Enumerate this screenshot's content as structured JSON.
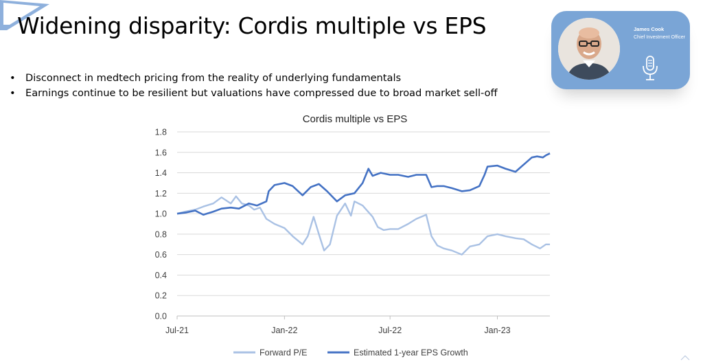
{
  "slide": {
    "title": "Widening disparity: Cordis multiple vs EPS",
    "bullets": [
      "Disconnect in medtech pricing from the reality of underlying fundamentals",
      "Earnings continue to be resilient but valuations have compressed due to broad market sell-off"
    ],
    "accent_color": "#7aa5d6"
  },
  "presenter": {
    "name": "James Cook",
    "role": "Chief Investment Officer",
    "icon": "microphone-icon"
  },
  "chart_data": {
    "type": "line",
    "title": "Cordis multiple vs EPS",
    "xlabel": "",
    "ylabel": "",
    "x_ticks": [
      "Jul-21",
      "Jan-22",
      "Jul-22",
      "Jan-23"
    ],
    "xlim": [
      "2021-07-01",
      "2023-04-01"
    ],
    "ylim": [
      0,
      1.8
    ],
    "y_ticks": [
      0.0,
      0.2,
      0.4,
      0.6,
      0.8,
      1.0,
      1.2,
      1.4,
      1.6,
      1.8
    ],
    "grid": true,
    "legend_position": "bottom",
    "series": [
      {
        "name": "Forward P/E",
        "color": "#a9c1e4",
        "points": [
          [
            "2021-07-01",
            1.0
          ],
          [
            "2021-07-15",
            1.02
          ],
          [
            "2021-08-01",
            1.04
          ],
          [
            "2021-08-15",
            1.07
          ],
          [
            "2021-09-01",
            1.1
          ],
          [
            "2021-09-15",
            1.16
          ],
          [
            "2021-10-01",
            1.1
          ],
          [
            "2021-10-10",
            1.17
          ],
          [
            "2021-10-20",
            1.1
          ],
          [
            "2021-11-01",
            1.08
          ],
          [
            "2021-11-10",
            1.04
          ],
          [
            "2021-11-20",
            1.06
          ],
          [
            "2021-12-01",
            0.95
          ],
          [
            "2021-12-15",
            0.9
          ],
          [
            "2022-01-01",
            0.86
          ],
          [
            "2022-01-15",
            0.78
          ],
          [
            "2022-02-01",
            0.7
          ],
          [
            "2022-02-10",
            0.78
          ],
          [
            "2022-02-20",
            0.97
          ],
          [
            "2022-03-01",
            0.8
          ],
          [
            "2022-03-10",
            0.64
          ],
          [
            "2022-03-20",
            0.7
          ],
          [
            "2022-04-01",
            0.98
          ],
          [
            "2022-04-15",
            1.1
          ],
          [
            "2022-04-25",
            0.98
          ],
          [
            "2022-05-01",
            1.12
          ],
          [
            "2022-05-15",
            1.08
          ],
          [
            "2022-06-01",
            0.97
          ],
          [
            "2022-06-10",
            0.87
          ],
          [
            "2022-06-20",
            0.84
          ],
          [
            "2022-07-01",
            0.85
          ],
          [
            "2022-07-15",
            0.85
          ],
          [
            "2022-08-01",
            0.9
          ],
          [
            "2022-08-15",
            0.95
          ],
          [
            "2022-09-01",
            0.99
          ],
          [
            "2022-09-10",
            0.78
          ],
          [
            "2022-09-20",
            0.69
          ],
          [
            "2022-10-01",
            0.66
          ],
          [
            "2022-10-15",
            0.64
          ],
          [
            "2022-11-01",
            0.6
          ],
          [
            "2022-11-15",
            0.68
          ],
          [
            "2022-12-01",
            0.7
          ],
          [
            "2022-12-15",
            0.78
          ],
          [
            "2023-01-01",
            0.8
          ],
          [
            "2023-01-15",
            0.78
          ],
          [
            "2023-02-01",
            0.76
          ],
          [
            "2023-02-15",
            0.75
          ],
          [
            "2023-03-01",
            0.7
          ],
          [
            "2023-03-15",
            0.66
          ],
          [
            "2023-03-25",
            0.7
          ],
          [
            "2023-04-01",
            0.7
          ]
        ]
      },
      {
        "name": "Estimated 1-year EPS Growth",
        "color": "#4472c4",
        "points": [
          [
            "2021-07-01",
            1.0
          ],
          [
            "2021-07-15",
            1.01
          ],
          [
            "2021-08-01",
            1.03
          ],
          [
            "2021-08-15",
            0.99
          ],
          [
            "2021-09-01",
            1.02
          ],
          [
            "2021-09-15",
            1.05
          ],
          [
            "2021-10-01",
            1.06
          ],
          [
            "2021-10-15",
            1.05
          ],
          [
            "2021-11-01",
            1.1
          ],
          [
            "2021-11-15",
            1.08
          ],
          [
            "2021-12-01",
            1.12
          ],
          [
            "2021-12-05",
            1.22
          ],
          [
            "2021-12-15",
            1.28
          ],
          [
            "2022-01-01",
            1.3
          ],
          [
            "2022-01-15",
            1.27
          ],
          [
            "2022-02-01",
            1.18
          ],
          [
            "2022-02-15",
            1.26
          ],
          [
            "2022-03-01",
            1.29
          ],
          [
            "2022-03-15",
            1.22
          ],
          [
            "2022-04-01",
            1.12
          ],
          [
            "2022-04-15",
            1.18
          ],
          [
            "2022-05-01",
            1.2
          ],
          [
            "2022-05-15",
            1.3
          ],
          [
            "2022-05-25",
            1.44
          ],
          [
            "2022-06-01",
            1.37
          ],
          [
            "2022-06-15",
            1.4
          ],
          [
            "2022-07-01",
            1.38
          ],
          [
            "2022-07-15",
            1.38
          ],
          [
            "2022-08-01",
            1.36
          ],
          [
            "2022-08-15",
            1.38
          ],
          [
            "2022-09-01",
            1.38
          ],
          [
            "2022-09-10",
            1.26
          ],
          [
            "2022-09-20",
            1.27
          ],
          [
            "2022-10-01",
            1.27
          ],
          [
            "2022-10-15",
            1.25
          ],
          [
            "2022-11-01",
            1.22
          ],
          [
            "2022-11-15",
            1.23
          ],
          [
            "2022-12-01",
            1.27
          ],
          [
            "2022-12-10",
            1.38
          ],
          [
            "2022-12-15",
            1.46
          ],
          [
            "2023-01-01",
            1.47
          ],
          [
            "2023-01-15",
            1.44
          ],
          [
            "2023-02-01",
            1.41
          ],
          [
            "2023-02-15",
            1.48
          ],
          [
            "2023-03-01",
            1.55
          ],
          [
            "2023-03-10",
            1.56
          ],
          [
            "2023-03-20",
            1.55
          ],
          [
            "2023-03-25",
            1.57
          ],
          [
            "2023-04-01",
            1.59
          ]
        ]
      }
    ]
  }
}
